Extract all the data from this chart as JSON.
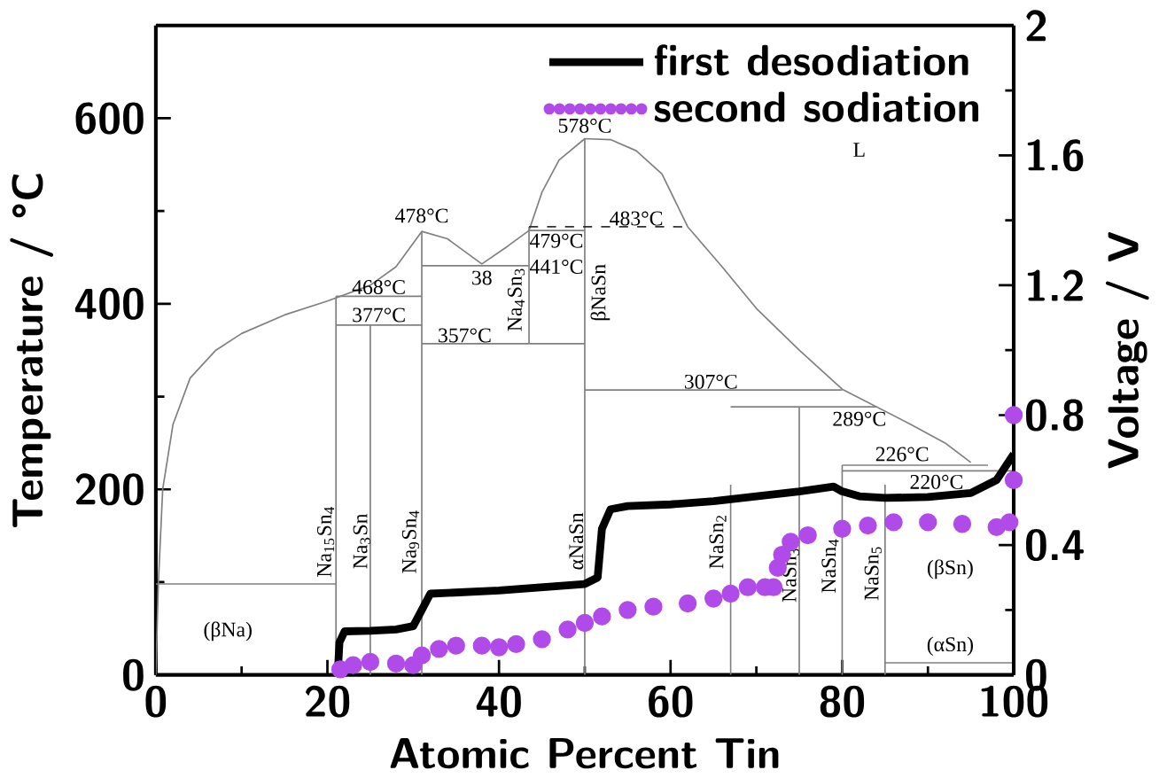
{
  "chart_data": {
    "type": "line",
    "xlabel": "Atomic Percent Tin",
    "ylabel": "Temperature / °C",
    "y2label": "Voltage / V",
    "xlim": [
      0,
      100
    ],
    "xticks": [
      0,
      20,
      40,
      60,
      80,
      100
    ],
    "ylim": [
      0,
      700
    ],
    "yticks": [
      0,
      200,
      400,
      600
    ],
    "y2lim": [
      0,
      2
    ],
    "y2ticks": [
      0,
      0.4,
      0.8,
      1.2,
      1.6,
      2
    ],
    "grid": false,
    "legend": "top right",
    "series": [
      {
        "color": "#808080",
        "axis": "y",
        "line_style": "solid",
        "marker": "none",
        "x": [
          0,
          0.3,
          0.8,
          2,
          4,
          7,
          10,
          15,
          20,
          25,
          28,
          31,
          34,
          38,
          41,
          43.5,
          45,
          47,
          50,
          53,
          56,
          59,
          62,
          66,
          70,
          75,
          80,
          84,
          88,
          92,
          95
        ],
        "values": [
          0,
          100,
          200,
          270,
          320,
          350,
          368,
          388,
          403,
          420,
          440,
          478,
          470,
          443,
          462,
          479,
          520,
          555,
          578,
          577,
          565,
          540,
          483,
          440,
          395,
          350,
          308,
          289,
          270,
          250,
          229
        ]
      },
      {
        "color": "#808080",
        "axis": "y",
        "line_style": "solid",
        "marker": "none",
        "x": [
          0,
          21
        ],
        "values": [
          98,
          98
        ]
      },
      {
        "color": "#808080",
        "axis": "y",
        "line_style": "solid",
        "marker": "none",
        "x": [
          21,
          21
        ],
        "values": [
          0,
          408
        ]
      },
      {
        "color": "#808080",
        "axis": "y",
        "line_style": "solid",
        "marker": "none",
        "x": [
          21,
          31
        ],
        "values": [
          408,
          408
        ]
      },
      {
        "color": "#808080",
        "axis": "y",
        "line_style": "solid",
        "marker": "none",
        "x": [
          21,
          31
        ],
        "values": [
          377,
          377
        ]
      },
      {
        "color": "#808080",
        "axis": "y",
        "line_style": "solid",
        "marker": "none",
        "x": [
          25,
          25
        ],
        "values": [
          0,
          377
        ]
      },
      {
        "color": "#808080",
        "axis": "y",
        "line_style": "solid",
        "marker": "none",
        "x": [
          31,
          31
        ],
        "values": [
          0,
          478
        ]
      },
      {
        "color": "#808080",
        "axis": "y",
        "line_style": "solid",
        "marker": "none",
        "x": [
          31,
          43.5
        ],
        "values": [
          441,
          441
        ]
      },
      {
        "color": "#808080",
        "axis": "y",
        "line_style": "solid",
        "marker": "none",
        "x": [
          31,
          50
        ],
        "values": [
          357,
          357
        ]
      },
      {
        "color": "#808080",
        "axis": "y",
        "line_style": "solid",
        "marker": "none",
        "x": [
          43.5,
          43.5
        ],
        "values": [
          357,
          483
        ]
      },
      {
        "color": "#808080",
        "axis": "y",
        "line_style": "solid",
        "marker": "none",
        "x": [
          43.5,
          50
        ],
        "values": [
          479,
          479
        ]
      },
      {
        "color": "#808080",
        "axis": "y",
        "line_style": "solid",
        "marker": "none",
        "x": [
          50,
          50
        ],
        "values": [
          0,
          578
        ]
      },
      {
        "color": "#808080",
        "axis": "y",
        "line_style": "solid",
        "marker": "none",
        "x": [
          50,
          80
        ],
        "values": [
          307,
          307
        ]
      },
      {
        "color": "#808080",
        "axis": "y",
        "line_style": "solid",
        "marker": "none",
        "x": [
          67,
          67
        ],
        "values": [
          0,
          205
        ]
      },
      {
        "color": "#808080",
        "axis": "y",
        "line_style": "solid",
        "marker": "none",
        "x": [
          67,
          84
        ],
        "values": [
          289,
          289
        ]
      },
      {
        "color": "#808080",
        "axis": "y",
        "line_style": "solid",
        "marker": "none",
        "x": [
          75,
          75
        ],
        "values": [
          0,
          289
        ]
      },
      {
        "color": "#808080",
        "axis": "y",
        "line_style": "solid",
        "marker": "none",
        "x": [
          80,
          80
        ],
        "values": [
          0,
          226
        ]
      },
      {
        "color": "#808080",
        "axis": "y",
        "line_style": "solid",
        "marker": "none",
        "x": [
          80,
          97
        ],
        "values": [
          226,
          226
        ]
      },
      {
        "color": "#808080",
        "axis": "y",
        "line_style": "solid",
        "marker": "none",
        "x": [
          80,
          100
        ],
        "values": [
          220,
          220
        ]
      },
      {
        "color": "#808080",
        "axis": "y",
        "line_style": "solid",
        "marker": "none",
        "x": [
          85,
          85
        ],
        "values": [
          0,
          205
        ]
      },
      {
        "color": "#808080",
        "axis": "y",
        "line_style": "solid",
        "marker": "none",
        "x": [
          85,
          100
        ],
        "values": [
          13,
          13
        ]
      },
      {
        "color": "#303030",
        "axis": "y",
        "line_style": "dashed",
        "marker": "none",
        "x": [
          43.5,
          62
        ],
        "values": [
          483,
          483
        ]
      },
      {
        "name": "first desodiation",
        "color": "#000000",
        "axis": "y2",
        "line_style": "solid",
        "marker": "none",
        "x": [
          21.2,
          21.4,
          22,
          25,
          28,
          30,
          31,
          32,
          40,
          50,
          51.5,
          52,
          53,
          55,
          60,
          65,
          70,
          75,
          79,
          80,
          82,
          85,
          90,
          95,
          98,
          100
        ],
        "values": [
          0,
          0.1,
          0.134,
          0.136,
          0.14,
          0.15,
          0.2,
          0.25,
          0.26,
          0.28,
          0.3,
          0.45,
          0.51,
          0.52,
          0.525,
          0.535,
          0.55,
          0.565,
          0.58,
          0.565,
          0.55,
          0.545,
          0.548,
          0.56,
          0.6,
          0.68
        ]
      },
      {
        "type": "scatter",
        "name": "second sodiation",
        "color": "#b04ae8",
        "axis": "y2",
        "marker": "circle",
        "x": [
          21.5,
          23,
          25,
          28,
          30,
          31,
          33,
          35,
          38,
          40,
          42,
          45,
          48,
          50,
          52,
          55,
          58,
          62,
          65,
          67,
          69,
          71,
          72,
          72.5,
          73,
          74,
          76,
          80,
          83,
          86,
          90,
          94,
          98,
          99.5,
          100,
          100
        ],
        "values": [
          0.017,
          0.03,
          0.04,
          0.035,
          0.03,
          0.06,
          0.08,
          0.09,
          0.09,
          0.085,
          0.095,
          0.11,
          0.14,
          0.16,
          0.18,
          0.2,
          0.21,
          0.22,
          0.235,
          0.25,
          0.27,
          0.27,
          0.27,
          0.33,
          0.37,
          0.41,
          0.43,
          0.45,
          0.46,
          0.47,
          0.47,
          0.465,
          0.455,
          0.47,
          0.6,
          0.8
        ]
      }
    ],
    "annotations": [
      "478°C",
      "468°C",
      "377°C",
      "357°C",
      "38",
      "479°C",
      "441°C",
      "578°C",
      "483°C",
      "307°C",
      "289°C",
      "226°C",
      "220°C",
      "L",
      "(βNa)",
      "(βSn)",
      "(αSn)",
      "Na$_{15}$Sn$_{4}$",
      "Na$_{3}$Sn",
      "Na$_{9}$Sn$_{4}$",
      "Na$_{4}$Sn$_{3}$",
      "βNaSn",
      "αNaSn",
      "NaSn$_{2}$",
      "NaSn$_{3}$",
      "NaSn$_{4}$",
      "NaSn$_{5}$"
    ]
  }
}
